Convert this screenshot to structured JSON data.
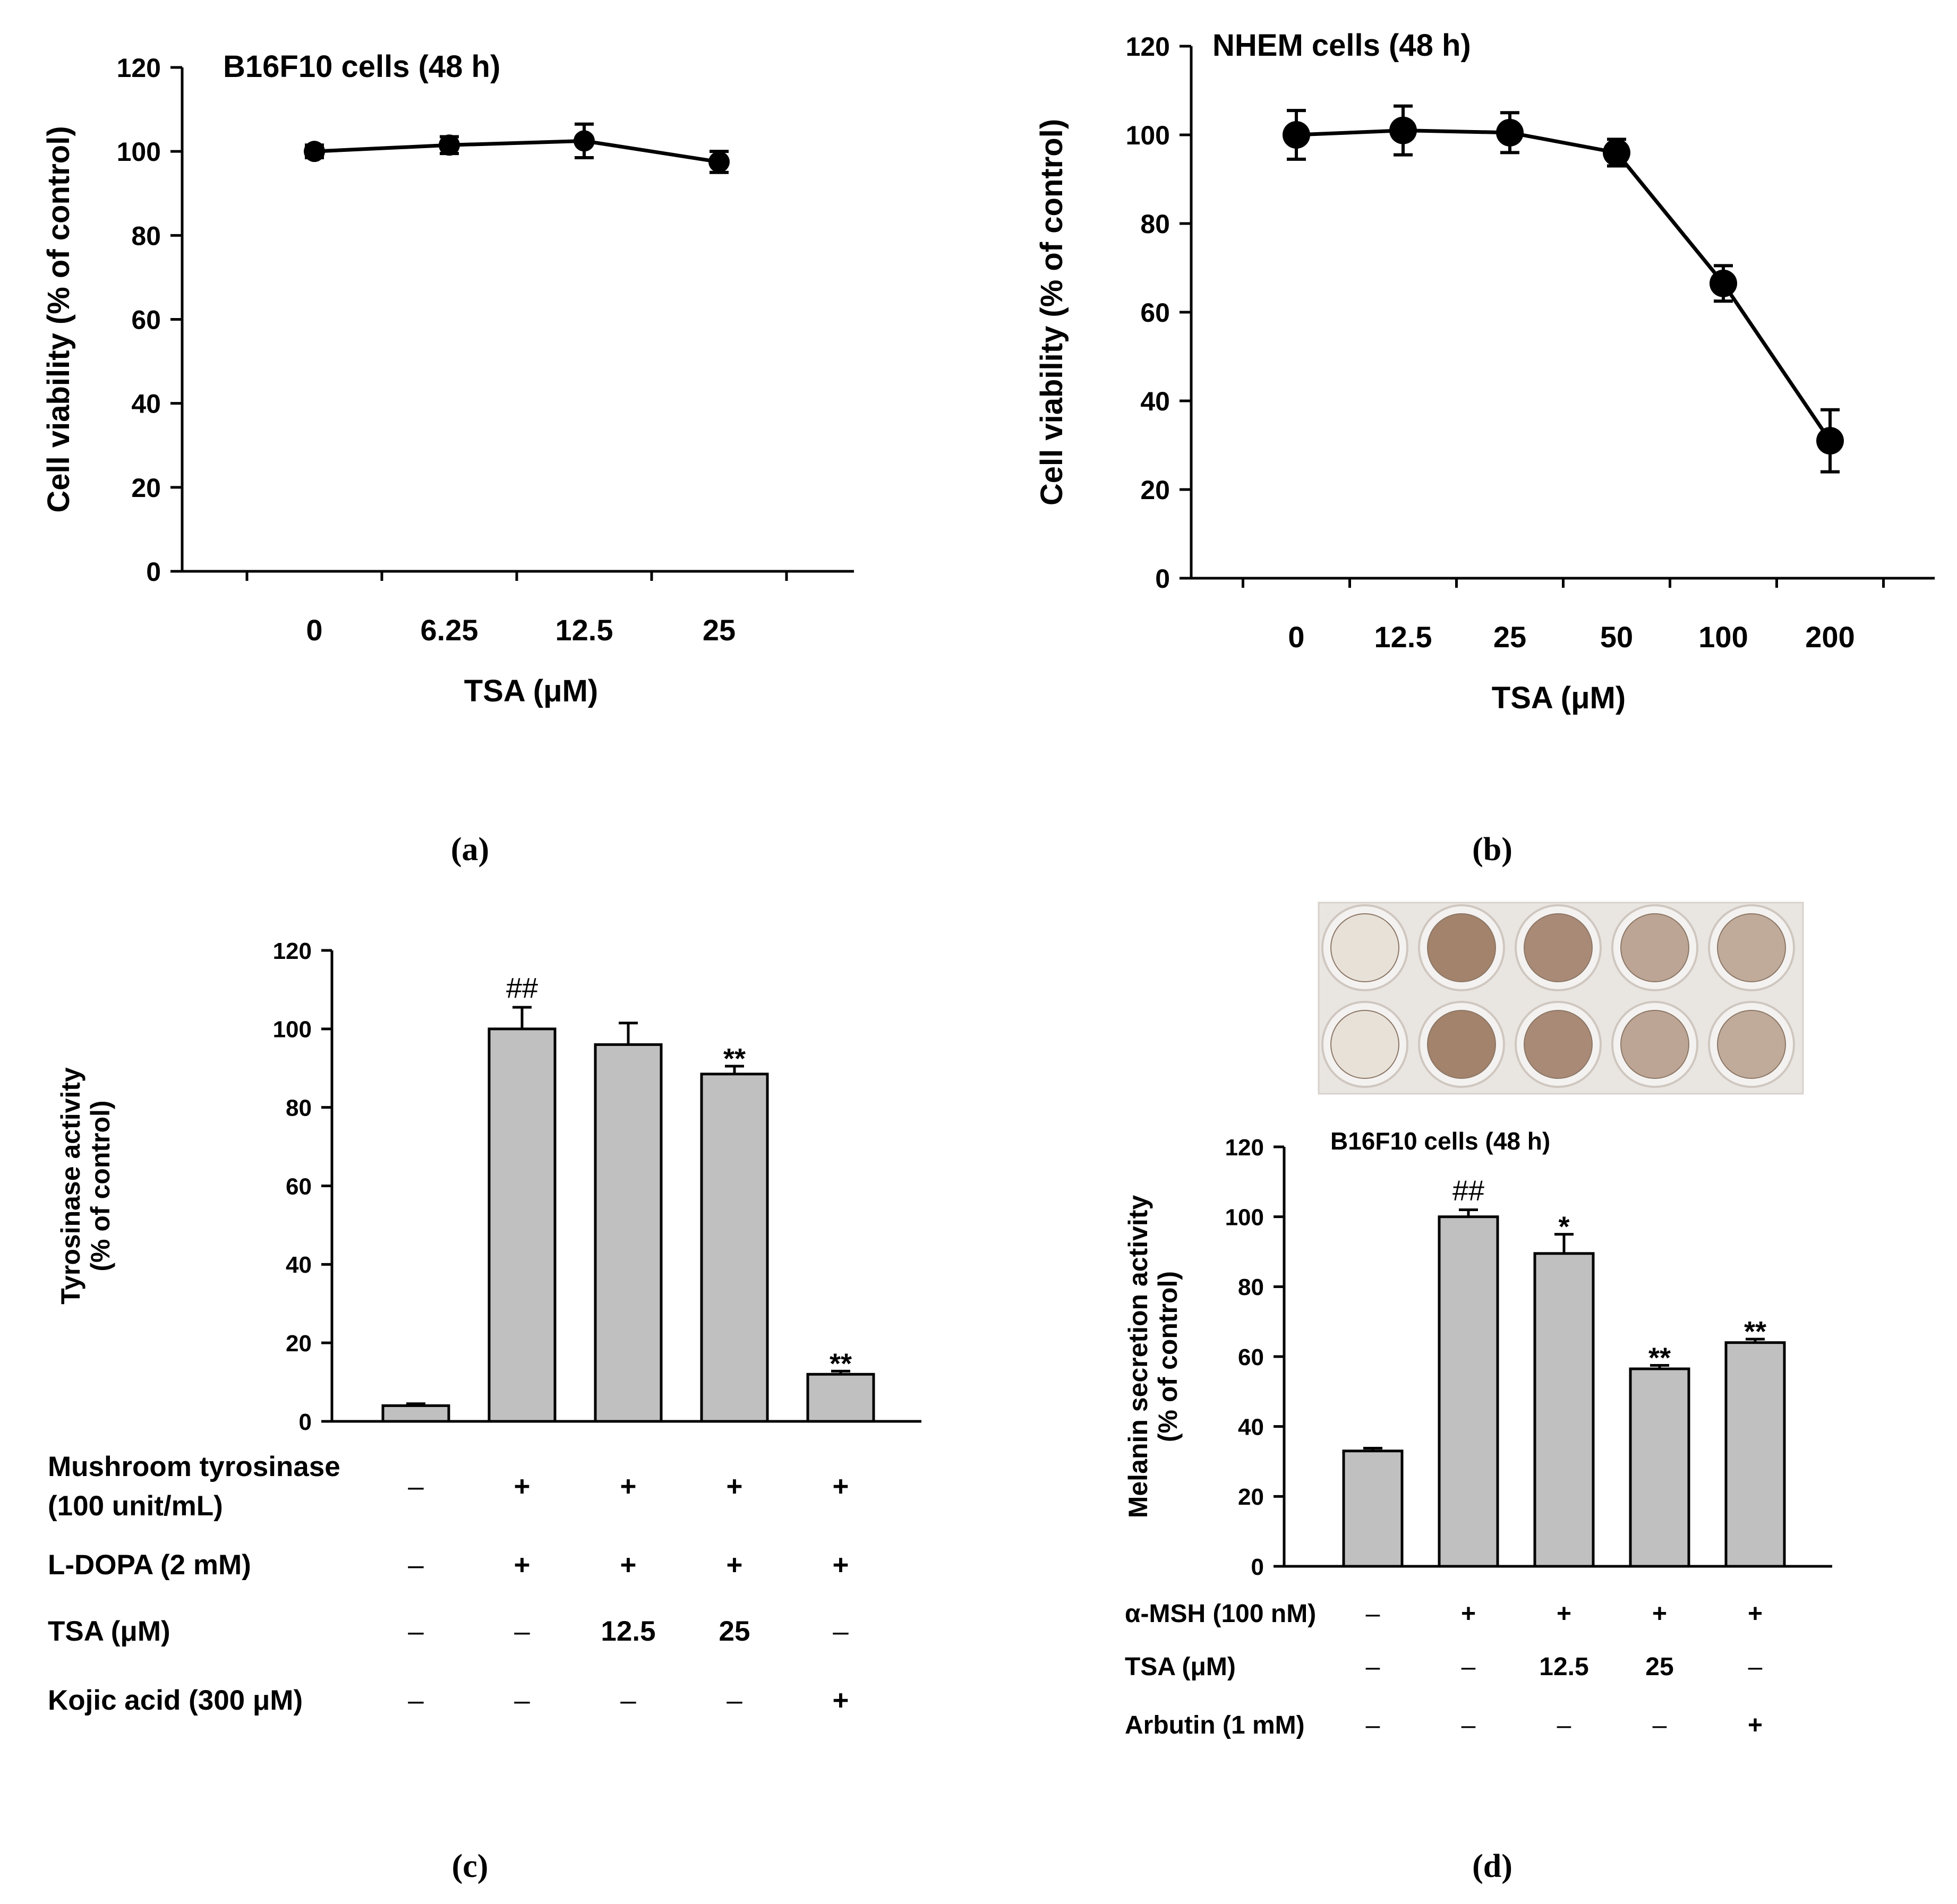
{
  "panel_labels": [
    "(a)",
    "(b)",
    "(c)",
    "(d)"
  ],
  "chart_data": [
    {
      "type": "line",
      "panel": "(a)",
      "title": "B16F10 cells (48 h)",
      "xlabel": "TSA (μM)",
      "ylabel": "Cell viability (% of control)",
      "categories": [
        "0",
        "6.25",
        "12.5",
        "25"
      ],
      "values": [
        100,
        101.5,
        102.5,
        97.5
      ],
      "errors": [
        1.5,
        2,
        4,
        2.5
      ],
      "ylim": [
        0,
        120
      ],
      "yticks": [
        "0",
        "20",
        "40",
        "60",
        "80",
        "100",
        "120"
      ]
    },
    {
      "type": "line",
      "panel": "(b)",
      "title": "NHEM cells (48 h)",
      "xlabel": "TSA (μM)",
      "ylabel": "Cell viability (% of control)",
      "categories": [
        "0",
        "12.5",
        "25",
        "50",
        "100",
        "200"
      ],
      "values": [
        100,
        101,
        100.5,
        96,
        66.5,
        31
      ],
      "errors": [
        5.5,
        5.5,
        4.5,
        3,
        4,
        7
      ],
      "ylim": [
        0,
        120
      ],
      "yticks": [
        "0",
        "20",
        "40",
        "60",
        "80",
        "100",
        "120"
      ]
    },
    {
      "type": "bar",
      "panel": "(c)",
      "ylabel_lines": [
        "Tyrosinase activity",
        "(% of control)"
      ],
      "values": [
        4,
        100,
        96,
        88.5,
        12
      ],
      "errors": [
        0.5,
        5.5,
        5.5,
        2,
        0.8
      ],
      "annotations": [
        "",
        "##",
        "",
        "**",
        "**"
      ],
      "ylim": [
        0,
        120
      ],
      "yticks": [
        "0",
        "20",
        "40",
        "60",
        "80",
        "100",
        "120"
      ],
      "treatment_rows": [
        {
          "label_lines": [
            "Mushroom tyrosinase",
            "(100 unit/mL)"
          ],
          "values": [
            "–",
            "+",
            "+",
            "+",
            "+"
          ]
        },
        {
          "label_lines": [
            "L-DOPA (2 mM)"
          ],
          "values": [
            "–",
            "+",
            "+",
            "+",
            "+"
          ]
        },
        {
          "label_lines": [
            "TSA (μM)"
          ],
          "values": [
            "–",
            "–",
            "12.5",
            "25",
            "–"
          ]
        },
        {
          "label_lines": [
            "Kojic acid (300 μM)"
          ],
          "values": [
            "–",
            "–",
            "–",
            "–",
            "+"
          ]
        }
      ]
    },
    {
      "type": "bar",
      "panel": "(d)",
      "title": "B16F10 cells (48 h)",
      "ylabel_lines": [
        "Melanin secretion activity",
        "(% of control)"
      ],
      "values": [
        33,
        100,
        89.5,
        56.5,
        64
      ],
      "errors": [
        0.8,
        2,
        5.5,
        1,
        1
      ],
      "annotations": [
        "",
        "##",
        "*",
        "**",
        "**"
      ],
      "ylim": [
        0,
        120
      ],
      "yticks": [
        "0",
        "20",
        "40",
        "60",
        "80",
        "100",
        "120"
      ],
      "treatment_rows": [
        {
          "label_lines": [
            "α-MSH (100 nM)"
          ],
          "values": [
            "–",
            "+",
            "+",
            "+",
            "+"
          ]
        },
        {
          "label_lines": [
            "TSA (μM)"
          ],
          "values": [
            "–",
            "–",
            "12.5",
            "25",
            "–"
          ]
        },
        {
          "label_lines": [
            "Arbutin (1 mM)"
          ],
          "values": [
            "–",
            "–",
            "–",
            "–",
            "+"
          ]
        }
      ],
      "photo_wells": {
        "rows": 2,
        "colors": [
          "#e6dfd6",
          "#9e7c64",
          "#a48470",
          "#b8a08e",
          "#bda696"
        ]
      }
    }
  ]
}
